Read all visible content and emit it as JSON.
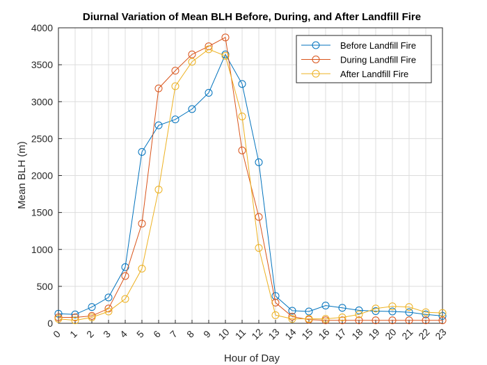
{
  "chart_data": {
    "type": "line",
    "title": "Diurnal Variation of Mean BLH Before, During, and After Landfill Fire",
    "xlabel": "Hour of Day",
    "ylabel": "Mean BLH (m)",
    "x": [
      0,
      1,
      2,
      3,
      4,
      5,
      6,
      7,
      8,
      9,
      10,
      11,
      12,
      13,
      14,
      15,
      16,
      17,
      18,
      19,
      20,
      21,
      22,
      23
    ],
    "xlim": [
      0,
      23
    ],
    "ylim": [
      0,
      4000
    ],
    "yticks": [
      0,
      500,
      1000,
      1500,
      2000,
      2500,
      3000,
      3500,
      4000
    ],
    "grid": true,
    "legend_position": "top-right",
    "series": [
      {
        "name": "Before Landfill Fire",
        "color": "#0072BD",
        "values": [
          130,
          120,
          220,
          350,
          760,
          2320,
          2680,
          2760,
          2900,
          3120,
          3640,
          3240,
          2180,
          370,
          170,
          160,
          240,
          210,
          175,
          165,
          160,
          150,
          120,
          100
        ]
      },
      {
        "name": "During Landfill Fire",
        "color": "#D95319",
        "values": [
          80,
          80,
          100,
          200,
          640,
          1350,
          3180,
          3420,
          3640,
          3750,
          3870,
          2340,
          1440,
          280,
          90,
          50,
          40,
          40,
          40,
          40,
          40,
          40,
          40,
          40
        ]
      },
      {
        "name": "After Landfill Fire",
        "color": "#EDB120",
        "values": [
          60,
          40,
          80,
          160,
          330,
          740,
          1810,
          3210,
          3540,
          3710,
          3620,
          2800,
          1020,
          110,
          60,
          60,
          60,
          80,
          120,
          200,
          230,
          220,
          150,
          140
        ]
      }
    ]
  }
}
